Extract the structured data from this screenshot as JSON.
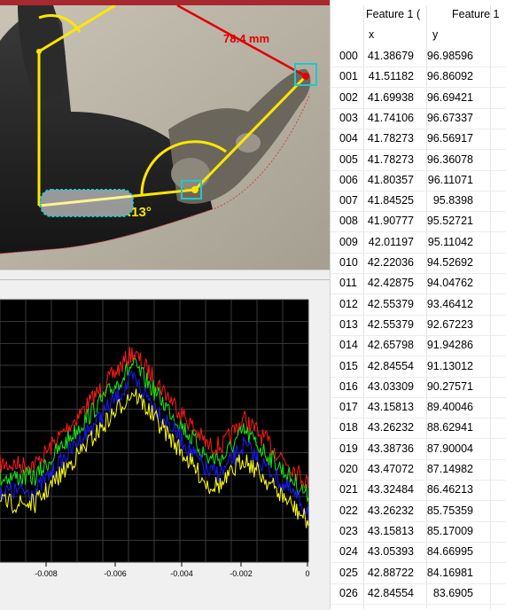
{
  "photo": {
    "measurement_label": "78.4 mm",
    "angle_label": ".13°",
    "feature_label": "Feature 1"
  },
  "table": {
    "header_row1": [
      "Feature 1 (",
      "Feature 1"
    ],
    "header_row2": [
      "x",
      "y"
    ],
    "rows": [
      {
        "idx": "000",
        "x": "41.38679",
        "y": "96.98596"
      },
      {
        "idx": "001",
        "x": "41.51182",
        "y": "96.86092"
      },
      {
        "idx": "002",
        "x": "41.69938",
        "y": "96.69421"
      },
      {
        "idx": "003",
        "x": "41.74106",
        "y": "96.67337"
      },
      {
        "idx": "004",
        "x": "41.78273",
        "y": "96.56917"
      },
      {
        "idx": "005",
        "x": "41.78273",
        "y": "96.36078"
      },
      {
        "idx": "006",
        "x": "41.80357",
        "y": "96.11071"
      },
      {
        "idx": "007",
        "x": "41.84525",
        "y": "95.8398"
      },
      {
        "idx": "008",
        "x": "41.90777",
        "y": "95.52721"
      },
      {
        "idx": "009",
        "x": "42.01197",
        "y": "95.11042"
      },
      {
        "idx": "010",
        "x": "42.22036",
        "y": "94.52692"
      },
      {
        "idx": "011",
        "x": "42.42875",
        "y": "94.04762"
      },
      {
        "idx": "012",
        "x": "42.55379",
        "y": "93.46412"
      },
      {
        "idx": "013",
        "x": "42.55379",
        "y": "92.67223"
      },
      {
        "idx": "014",
        "x": "42.65798",
        "y": "91.94286"
      },
      {
        "idx": "015",
        "x": "42.84554",
        "y": "91.13012"
      },
      {
        "idx": "016",
        "x": "43.03309",
        "y": "90.27571"
      },
      {
        "idx": "017",
        "x": "43.15813",
        "y": "89.40046"
      },
      {
        "idx": "018",
        "x": "43.26232",
        "y": "88.62941"
      },
      {
        "idx": "019",
        "x": "43.38736",
        "y": "87.90004"
      },
      {
        "idx": "020",
        "x": "43.47072",
        "y": "87.14982"
      },
      {
        "idx": "021",
        "x": "43.32484",
        "y": "86.46213"
      },
      {
        "idx": "022",
        "x": "43.26232",
        "y": "85.75359"
      },
      {
        "idx": "023",
        "x": "43.15813",
        "y": "85.17009"
      },
      {
        "idx": "024",
        "x": "43.05393",
        "y": "84.66995"
      },
      {
        "idx": "025",
        "x": "42.88722",
        "y": "84.16981"
      },
      {
        "idx": "026",
        "x": "42.84554",
        "y": "83.6905"
      }
    ]
  },
  "plot": {
    "x_ticks": [
      "-0.008",
      "-0.006",
      "-0.004",
      "-0.002",
      "0"
    ],
    "series_colors": {
      "red": "#ff1a1a",
      "green": "#19e619",
      "blue": "#1a1aff",
      "yellow": "#ffff1a"
    },
    "background": "#000000"
  }
}
